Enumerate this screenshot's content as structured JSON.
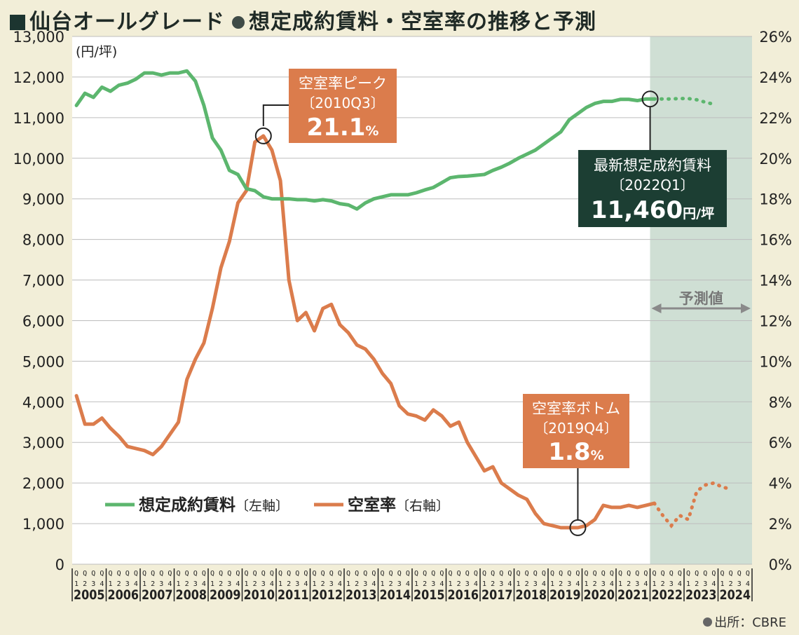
{
  "title": {
    "part1": "仙台オールグレード",
    "part2": "想定成約賃料・空室率の推移と予測"
  },
  "source": "出所：CBRE",
  "chart_data": {
    "type": "line",
    "title": "仙台オールグレード 想定成約賃料・空室率の推移と予測",
    "left_axis": {
      "unit": "(円/坪)",
      "min": 0,
      "max": 13000,
      "step": 1000,
      "ticks": [
        "0",
        "1,000",
        "2,000",
        "3,000",
        "4,000",
        "5,000",
        "6,000",
        "7,000",
        "8,000",
        "9,000",
        "10,000",
        "11,000",
        "12,000",
        "13,000"
      ]
    },
    "right_axis": {
      "min": 0,
      "max": 26,
      "step": 2,
      "ticks": [
        "0%",
        "2%",
        "4%",
        "6%",
        "8%",
        "10%",
        "12%",
        "14%",
        "16%",
        "18%",
        "20%",
        "22%",
        "24%",
        "26%"
      ]
    },
    "years": [
      "2005",
      "2006",
      "2007",
      "2008",
      "2009",
      "2010",
      "2011",
      "2012",
      "2013",
      "2014",
      "2015",
      "2016",
      "2017",
      "2018",
      "2019",
      "2020",
      "2021",
      "2022",
      "2023",
      "2024"
    ],
    "quarter_labels": [
      "Q1",
      "Q2",
      "Q3",
      "Q4"
    ],
    "forecast_label": "予測値",
    "forecast_start": "2022Q2",
    "series": [
      {
        "name": "想定成約賃料",
        "axis_note": "〔左軸〕",
        "color": "#5cb66e",
        "values": [
          11300,
          11600,
          11500,
          11750,
          11650,
          11800,
          11850,
          11950,
          12100,
          12100,
          12050,
          12100,
          12100,
          12150,
          11900,
          11300,
          10500,
          10200,
          9700,
          9600,
          9250,
          9200,
          9050,
          9000,
          9000,
          9000,
          8980,
          8980,
          8950,
          8980,
          8950,
          8880,
          8850,
          8750,
          8900,
          9000,
          9050,
          9100,
          9100,
          9100,
          9150,
          9220,
          9280,
          9400,
          9520,
          9550,
          9560,
          9580,
          9600,
          9700,
          9780,
          9880,
          10000,
          10100,
          10200,
          10350,
          10500,
          10650,
          10950,
          11100,
          11250,
          11350,
          11400,
          11400,
          11450,
          11450,
          11420,
          11460,
          11460,
          11460,
          11460,
          11470,
          11470,
          11440,
          11380,
          11330
        ],
        "forecast_from_index": 68
      },
      {
        "name": "空室率",
        "axis_note": "〔右軸〕",
        "color": "#db7c4c",
        "values": [
          8.3,
          6.9,
          6.9,
          7.2,
          6.7,
          6.3,
          5.8,
          5.7,
          5.6,
          5.4,
          5.8,
          6.4,
          7.0,
          9.1,
          10.1,
          10.9,
          12.6,
          14.6,
          15.9,
          17.8,
          18.4,
          20.8,
          21.1,
          20.4,
          18.9,
          14.0,
          12.0,
          12.4,
          11.5,
          12.6,
          12.8,
          11.8,
          11.4,
          10.8,
          10.6,
          10.1,
          9.4,
          8.9,
          7.8,
          7.4,
          7.3,
          7.1,
          7.6,
          7.3,
          6.8,
          7.0,
          6.0,
          5.3,
          4.6,
          4.8,
          4.0,
          3.7,
          3.4,
          3.2,
          2.5,
          2.0,
          1.9,
          1.8,
          1.8,
          1.8,
          1.9,
          2.2,
          2.9,
          2.8,
          2.8,
          2.9,
          2.8,
          2.9,
          3.0,
          2.4,
          1.9,
          2.4,
          2.2,
          3.6,
          3.9,
          4.0,
          3.8,
          3.7
        ],
        "forecast_from_index": 68
      }
    ],
    "annotations": {
      "vacancy_peak": {
        "line1": "空室率ピーク",
        "line2": "〔2010Q3〕",
        "value": "21.1",
        "unit": "%"
      },
      "vacancy_bottom": {
        "line1": "空室率ボトム",
        "line2": "〔2019Q4〕",
        "value": "1.8",
        "unit": "%"
      },
      "latest_rent": {
        "line1": "最新想定成約賃料",
        "line2": "〔2022Q1〕",
        "value": "11,460",
        "unit": "円/坪"
      }
    },
    "colors": {
      "rent": "#5cb66e",
      "vacancy": "#db7c4c",
      "forecast_band": "#cfdfd4",
      "rent_box": "#1c3e33",
      "vacancy_box": "#db7c4c"
    }
  }
}
